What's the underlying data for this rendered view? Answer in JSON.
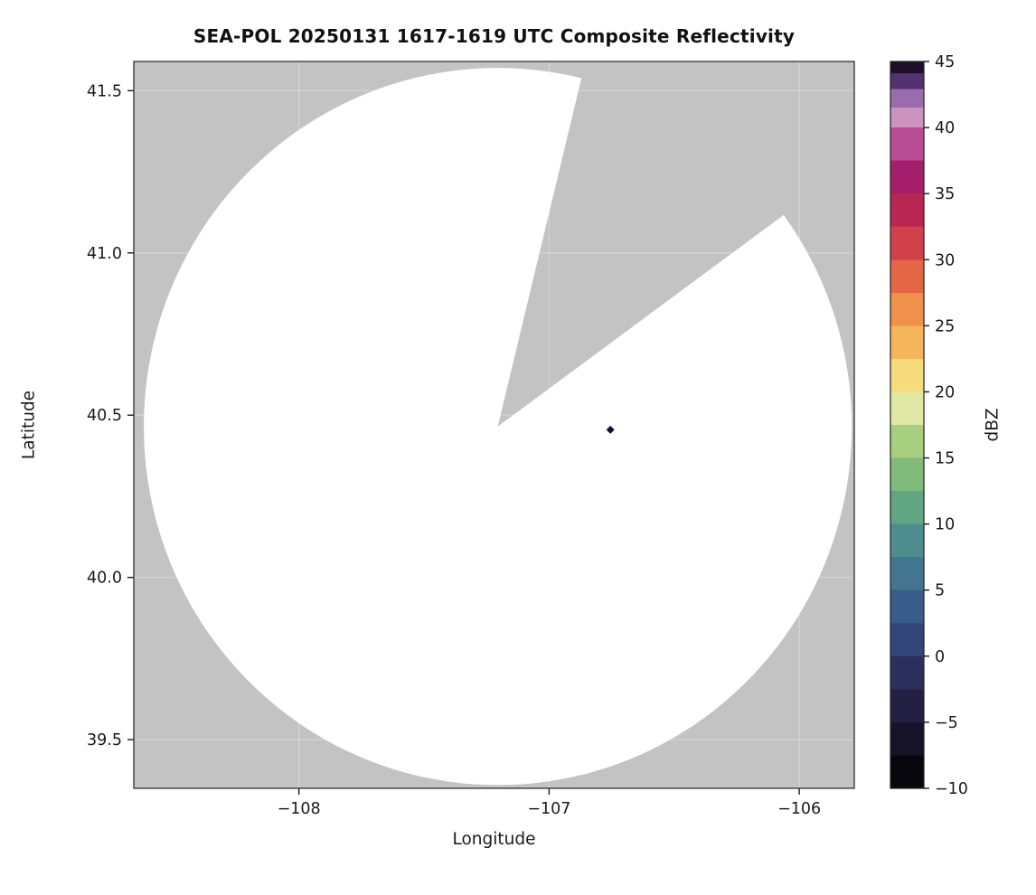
{
  "page": {
    "background": "#ffffff"
  },
  "chart_data": {
    "type": "heatmap",
    "variant": "radar-ppi-composite-reflectivity",
    "title": "SEA-POL 20250131 1617-1619 UTC Composite Reflectivity",
    "xlabel": "Longitude",
    "ylabel": "Latitude",
    "xlim": [
      -108.66,
      -105.78
    ],
    "ylim": [
      39.35,
      41.59
    ],
    "xticks": {
      "values": [
        -108,
        -107,
        -106
      ],
      "labels": [
        "−108",
        "−107",
        "−106"
      ]
    },
    "yticks": {
      "values": [
        41.5,
        41.0,
        40.5,
        40.0,
        39.5
      ],
      "labels": [
        "41.5",
        "41.0",
        "40.5",
        "40.0",
        "39.5"
      ]
    },
    "grid": {
      "visible": true,
      "color": "#ffffff",
      "opacity": 0.3
    },
    "background_color": "#c3c3c3",
    "radar_coverage": {
      "fill": "#ffffff",
      "center_lon": -107.205,
      "center_lat": 40.465,
      "radius_lon_deg": 1.415,
      "radius_lat_deg": 1.105,
      "missing_sector_azimuth_start_deg": 13.5,
      "missing_sector_azimuth_end_deg": 53.5
    },
    "echoes": [
      {
        "lon": -106.755,
        "lat": 40.455,
        "color": "#170d26"
      }
    ],
    "colorbar": {
      "label": "dBZ",
      "min": -10,
      "max": 45,
      "tick_values": [
        45,
        40,
        35,
        30,
        25,
        20,
        15,
        10,
        5,
        0,
        -5,
        -10
      ],
      "tick_labels": [
        "45",
        "40",
        "35",
        "30",
        "25",
        "20",
        "15",
        "10",
        "5",
        "0",
        "−5",
        "−10"
      ],
      "stops": [
        {
          "v": -10.0,
          "c": "#08070d"
        },
        {
          "v": -7.5,
          "c": "#171429"
        },
        {
          "v": -5.0,
          "c": "#232044"
        },
        {
          "v": -2.5,
          "c": "#2c2e5d"
        },
        {
          "v": 0.0,
          "c": "#334478"
        },
        {
          "v": 2.5,
          "c": "#3a5c8a"
        },
        {
          "v": 5.0,
          "c": "#437590"
        },
        {
          "v": 7.5,
          "c": "#4d8d8d"
        },
        {
          "v": 10.0,
          "c": "#61a583"
        },
        {
          "v": 12.5,
          "c": "#80bb7c"
        },
        {
          "v": 15.0,
          "c": "#a8cf80"
        },
        {
          "v": 17.5,
          "c": "#e0e8a6"
        },
        {
          "v": 20.0,
          "c": "#f7dc7e"
        },
        {
          "v": 22.5,
          "c": "#f4b55d"
        },
        {
          "v": 25.0,
          "c": "#ef904c"
        },
        {
          "v": 27.5,
          "c": "#e36645"
        },
        {
          "v": 30.0,
          "c": "#d14149"
        },
        {
          "v": 32.5,
          "c": "#ba2654"
        },
        {
          "v": 35.0,
          "c": "#a41e6b"
        },
        {
          "v": 37.5,
          "c": "#b84c94"
        },
        {
          "v": 40.0,
          "c": "#cc93c0"
        },
        {
          "v": 41.5,
          "c": "#9b6cab"
        },
        {
          "v": 42.9,
          "c": "#53306f"
        },
        {
          "v": 44.1,
          "c": "#1e0f2b"
        }
      ]
    }
  }
}
